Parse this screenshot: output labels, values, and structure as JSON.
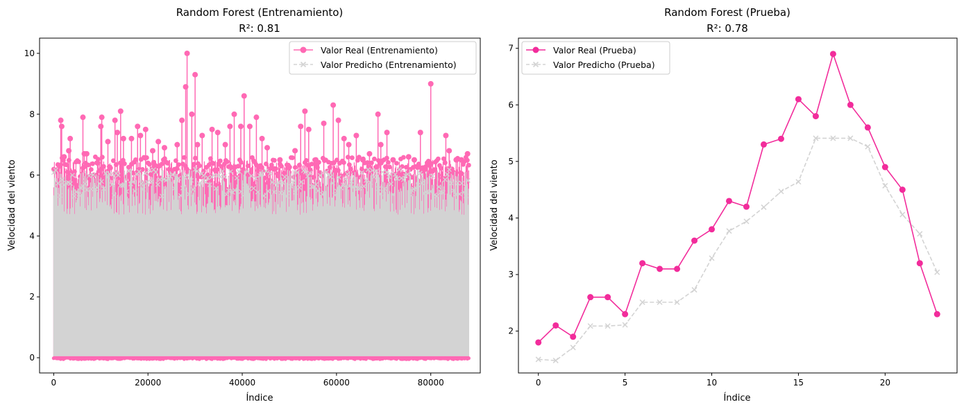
{
  "chart_data": [
    {
      "type": "line",
      "title_line1": "Random Forest (Entrenamiento)",
      "title_line2": "R²: 0.81",
      "xlabel": "Índice",
      "ylabel": "Velocidad del viento",
      "xlim": [
        -3000,
        90500
      ],
      "ylim": [
        -0.5,
        10.5
      ],
      "xticks": [
        0,
        20000,
        40000,
        60000,
        80000
      ],
      "yticks": [
        0,
        2,
        4,
        6,
        8,
        10
      ],
      "legend_position": "top-right",
      "grid": false,
      "n_points": 88000,
      "series": [
        {
          "name": "Valor Real (Entrenamiento)",
          "color": "#ff69b4",
          "marker": "circle",
          "linestyle": "solid",
          "description_range": [
            0,
            10
          ],
          "peaks": [
            [
              1500,
              7.8
            ],
            [
              1700,
              7.6
            ],
            [
              2200,
              6.6
            ],
            [
              3500,
              7.2
            ],
            [
              3200,
              6.8
            ],
            [
              6200,
              7.9
            ],
            [
              6500,
              6.7
            ],
            [
              7000,
              6.7
            ],
            [
              9300,
              6.4
            ],
            [
              10200,
              7.9
            ],
            [
              10000,
              7.6
            ],
            [
              11500,
              7.1
            ],
            [
              13000,
              7.8
            ],
            [
              13500,
              7.4
            ],
            [
              14200,
              8.1
            ],
            [
              14800,
              7.2
            ],
            [
              16500,
              7.2
            ],
            [
              17800,
              7.6
            ],
            [
              18400,
              7.3
            ],
            [
              19500,
              7.5
            ],
            [
              21000,
              6.8
            ],
            [
              22200,
              7.1
            ],
            [
              23500,
              6.9
            ],
            [
              26200,
              7.0
            ],
            [
              27200,
              7.8
            ],
            [
              28000,
              8.9
            ],
            [
              28300,
              10.0
            ],
            [
              29300,
              8.0
            ],
            [
              30000,
              9.3
            ],
            [
              30500,
              7.0
            ],
            [
              31500,
              7.3
            ],
            [
              33600,
              7.5
            ],
            [
              34800,
              7.4
            ],
            [
              36400,
              7.0
            ],
            [
              37400,
              7.6
            ],
            [
              38300,
              8.0
            ],
            [
              39700,
              7.6
            ],
            [
              40400,
              8.6
            ],
            [
              41600,
              7.6
            ],
            [
              43000,
              7.9
            ],
            [
              44200,
              7.2
            ],
            [
              45300,
              6.9
            ],
            [
              46800,
              6.2
            ],
            [
              48000,
              6.5
            ],
            [
              49600,
              6.2
            ],
            [
              51200,
              6.8
            ],
            [
              52400,
              7.6
            ],
            [
              53300,
              8.1
            ],
            [
              54100,
              7.5
            ],
            [
              55600,
              6.5
            ],
            [
              57300,
              7.7
            ],
            [
              59300,
              8.3
            ],
            [
              60400,
              7.8
            ],
            [
              61600,
              7.2
            ],
            [
              62600,
              7.0
            ],
            [
              64200,
              7.3
            ],
            [
              65600,
              6.5
            ],
            [
              67000,
              6.7
            ],
            [
              68800,
              8.0
            ],
            [
              69400,
              7.0
            ],
            [
              70700,
              7.4
            ],
            [
              72000,
              6.5
            ],
            [
              73600,
              6.0
            ],
            [
              75300,
              6.6
            ],
            [
              76500,
              6.5
            ],
            [
              77800,
              7.4
            ],
            [
              79300,
              6.4
            ],
            [
              80000,
              9.0
            ],
            [
              81500,
              6.0
            ],
            [
              83200,
              7.3
            ],
            [
              83900,
              6.8
            ],
            [
              85400,
              6.5
            ],
            [
              86500,
              6.5
            ],
            [
              87800,
              6.7
            ]
          ]
        },
        {
          "name": "Valor Predicho (Entrenamiento)",
          "color": "#d3d3d3",
          "marker": "x",
          "linestyle": "dashed",
          "description_range": [
            0,
            6.4
          ]
        }
      ]
    },
    {
      "type": "line",
      "title_line1": "Random Forest (Prueba)",
      "title_line2": "R²: 0.78",
      "xlabel": "Índice",
      "ylabel": "Velocidad del viento",
      "xlim": [
        -1.15,
        24.15
      ],
      "ylim": [
        1.26,
        7.18
      ],
      "xticks": [
        0,
        5,
        10,
        15,
        20
      ],
      "yticks": [
        2,
        3,
        4,
        5,
        6,
        7
      ],
      "legend_position": "top-left",
      "grid": false,
      "x": [
        0,
        1,
        2,
        3,
        4,
        5,
        6,
        7,
        8,
        9,
        10,
        11,
        12,
        13,
        14,
        15,
        16,
        17,
        18,
        19,
        20,
        21,
        22,
        23
      ],
      "series": [
        {
          "name": "Valor Real (Prueba)",
          "color": "#f22c9b",
          "marker": "circle",
          "linestyle": "solid",
          "values": [
            1.8,
            2.1,
            1.9,
            2.6,
            2.6,
            2.3,
            3.2,
            3.1,
            3.1,
            3.6,
            3.8,
            4.3,
            4.2,
            5.3,
            5.4,
            6.1,
            5.8,
            6.9,
            6.0,
            5.6,
            4.9,
            4.5,
            3.2,
            2.3
          ]
        },
        {
          "name": "Valor Predicho (Prueba)",
          "color": "#d3d3d3",
          "marker": "x",
          "linestyle": "dashed",
          "values": [
            1.5,
            1.48,
            1.71,
            2.09,
            2.09,
            2.11,
            2.51,
            2.51,
            2.51,
            2.73,
            3.29,
            3.77,
            3.94,
            4.19,
            4.47,
            4.64,
            5.41,
            5.41,
            5.41,
            5.26,
            4.57,
            4.06,
            3.72,
            3.04
          ]
        }
      ]
    }
  ]
}
